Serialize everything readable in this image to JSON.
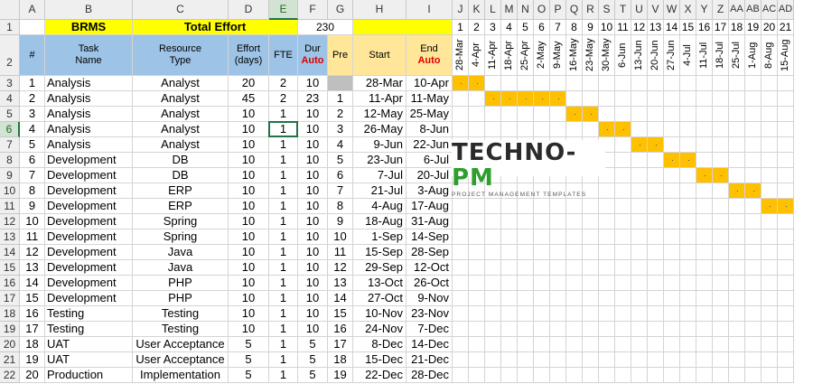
{
  "columns": [
    "A",
    "B",
    "C",
    "D",
    "E",
    "F",
    "G",
    "H",
    "I",
    "J",
    "K",
    "L",
    "M",
    "N",
    "O",
    "P",
    "Q",
    "R",
    "S",
    "T",
    "U",
    "V",
    "W",
    "X",
    "Y",
    "Z",
    "AA",
    "AB",
    "AC",
    "AD"
  ],
  "selected_column": "E",
  "selected_row": 6,
  "summary": {
    "project_name": "BRMS",
    "total_effort_label": "Total Effort",
    "total_effort_value": "230"
  },
  "headers": {
    "num": "#",
    "task_name": "Task\nName",
    "resource_type": "Resource\nType",
    "effort": "Effort\n(days)",
    "fte": "FTE",
    "dur": "Dur",
    "dur_auto": "Auto",
    "pre": "Pre",
    "start": "Start",
    "end": "End",
    "end_auto": "Auto"
  },
  "week_numbers": [
    "1",
    "2",
    "3",
    "4",
    "5",
    "6",
    "7",
    "8",
    "9",
    "10",
    "11",
    "12",
    "13",
    "14",
    "15",
    "16",
    "17",
    "18",
    "19",
    "20",
    "21"
  ],
  "week_dates": [
    "28-Mar",
    "4-Apr",
    "11-Apr",
    "18-Apr",
    "25-Apr",
    "2-May",
    "9-May",
    "16-May",
    "23-May",
    "30-May",
    "6-Jun",
    "13-Jun",
    "20-Jun",
    "27-Jun",
    "4-Jul",
    "11-Jul",
    "18-Jul",
    "25-Jul",
    "1-Aug",
    "8-Aug",
    "15-Aug"
  ],
  "tasks": [
    {
      "num": "1",
      "name": "Analysis",
      "resource": "Analyst",
      "effort": "20",
      "fte": "2",
      "dur": "10",
      "pre": "",
      "start": "28-Mar",
      "end": "10-Apr",
      "gantt_weeks": [
        1,
        2
      ]
    },
    {
      "num": "2",
      "name": "Analysis",
      "resource": "Analyst",
      "effort": "45",
      "fte": "2",
      "dur": "23",
      "pre": "1",
      "start": "11-Apr",
      "end": "11-May",
      "gantt_weeks": [
        3,
        4,
        5,
        6,
        7
      ]
    },
    {
      "num": "3",
      "name": "Analysis",
      "resource": "Analyst",
      "effort": "10",
      "fte": "1",
      "dur": "10",
      "pre": "2",
      "start": "12-May",
      "end": "25-May",
      "gantt_weeks": [
        8,
        9
      ]
    },
    {
      "num": "4",
      "name": "Analysis",
      "resource": "Analyst",
      "effort": "10",
      "fte": "1",
      "dur": "10",
      "pre": "3",
      "start": "26-May",
      "end": "8-Jun",
      "gantt_weeks": [
        10,
        11
      ]
    },
    {
      "num": "5",
      "name": "Analysis",
      "resource": "Analyst",
      "effort": "10",
      "fte": "1",
      "dur": "10",
      "pre": "4",
      "start": "9-Jun",
      "end": "22-Jun",
      "gantt_weeks": [
        12,
        13
      ]
    },
    {
      "num": "6",
      "name": "Development",
      "resource": "DB",
      "effort": "10",
      "fte": "1",
      "dur": "10",
      "pre": "5",
      "start": "23-Jun",
      "end": "6-Jul",
      "gantt_weeks": [
        14,
        15
      ]
    },
    {
      "num": "7",
      "name": "Development",
      "resource": "DB",
      "effort": "10",
      "fte": "1",
      "dur": "10",
      "pre": "6",
      "start": "7-Jul",
      "end": "20-Jul",
      "gantt_weeks": [
        16,
        17
      ]
    },
    {
      "num": "8",
      "name": "Development",
      "resource": "ERP",
      "effort": "10",
      "fte": "1",
      "dur": "10",
      "pre": "7",
      "start": "21-Jul",
      "end": "3-Aug",
      "gantt_weeks": [
        18,
        19
      ]
    },
    {
      "num": "9",
      "name": "Development",
      "resource": "ERP",
      "effort": "10",
      "fte": "1",
      "dur": "10",
      "pre": "8",
      "start": "4-Aug",
      "end": "17-Aug",
      "gantt_weeks": [
        20,
        21
      ]
    },
    {
      "num": "10",
      "name": "Development",
      "resource": "Spring",
      "effort": "10",
      "fte": "1",
      "dur": "10",
      "pre": "9",
      "start": "18-Aug",
      "end": "31-Aug",
      "gantt_weeks": []
    },
    {
      "num": "11",
      "name": "Development",
      "resource": "Spring",
      "effort": "10",
      "fte": "1",
      "dur": "10",
      "pre": "10",
      "start": "1-Sep",
      "end": "14-Sep",
      "gantt_weeks": []
    },
    {
      "num": "12",
      "name": "Development",
      "resource": "Java",
      "effort": "10",
      "fte": "1",
      "dur": "10",
      "pre": "11",
      "start": "15-Sep",
      "end": "28-Sep",
      "gantt_weeks": []
    },
    {
      "num": "13",
      "name": "Development",
      "resource": "Java",
      "effort": "10",
      "fte": "1",
      "dur": "10",
      "pre": "12",
      "start": "29-Sep",
      "end": "12-Oct",
      "gantt_weeks": []
    },
    {
      "num": "14",
      "name": "Development",
      "resource": "PHP",
      "effort": "10",
      "fte": "1",
      "dur": "10",
      "pre": "13",
      "start": "13-Oct",
      "end": "26-Oct",
      "gantt_weeks": []
    },
    {
      "num": "15",
      "name": "Development",
      "resource": "PHP",
      "effort": "10",
      "fte": "1",
      "dur": "10",
      "pre": "14",
      "start": "27-Oct",
      "end": "9-Nov",
      "gantt_weeks": []
    },
    {
      "num": "16",
      "name": "Testing",
      "resource": "Testing",
      "effort": "10",
      "fte": "1",
      "dur": "10",
      "pre": "15",
      "start": "10-Nov",
      "end": "23-Nov",
      "gantt_weeks": []
    },
    {
      "num": "17",
      "name": "Testing",
      "resource": "Testing",
      "effort": "10",
      "fte": "1",
      "dur": "10",
      "pre": "16",
      "start": "24-Nov",
      "end": "7-Dec",
      "gantt_weeks": []
    },
    {
      "num": "18",
      "name": "UAT",
      "resource": "User Acceptance",
      "effort": "5",
      "fte": "1",
      "dur": "5",
      "pre": "17",
      "start": "8-Dec",
      "end": "14-Dec",
      "gantt_weeks": []
    },
    {
      "num": "19",
      "name": "UAT",
      "resource": "User Acceptance",
      "effort": "5",
      "fte": "1",
      "dur": "5",
      "pre": "18",
      "start": "15-Dec",
      "end": "21-Dec",
      "gantt_weeks": []
    },
    {
      "num": "20",
      "name": "Production",
      "resource": "Implementation",
      "effort": "5",
      "fte": "1",
      "dur": "5",
      "pre": "19",
      "start": "22-Dec",
      "end": "28-Dec",
      "gantt_weeks": []
    }
  ],
  "logo": {
    "main_left": "TECHNO-",
    "main_right": "PM",
    "tagline": "PROJECT MANAGEMENT TEMPLATES"
  },
  "colors": {
    "yellow": "#ffff00",
    "header_blue": "#9dc3e6",
    "header_peach": "#ffe699",
    "gantt_bar": "#ffc000",
    "auto_red": "#e00000",
    "selection_green": "#217346",
    "logo_green": "#2e9e2e"
  }
}
